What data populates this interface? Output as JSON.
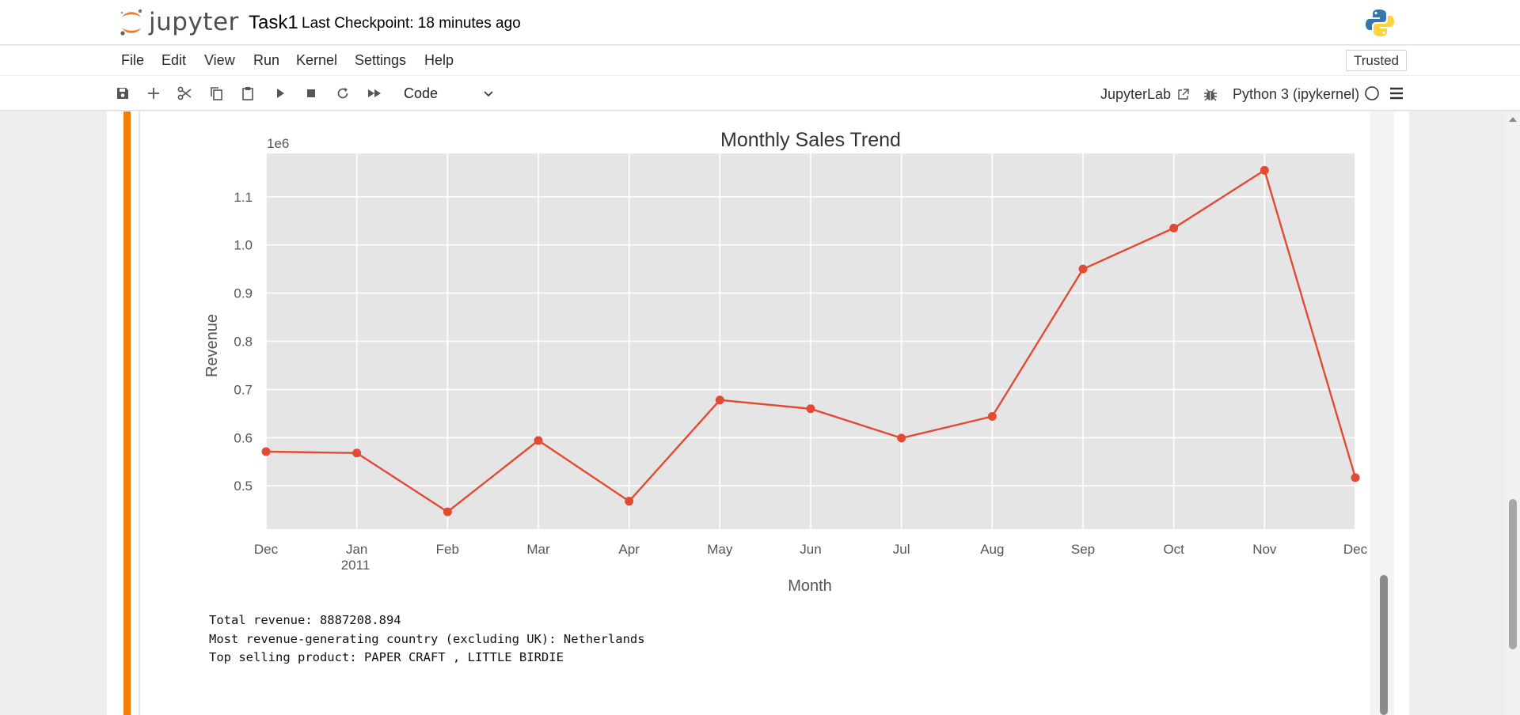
{
  "header": {
    "logo_text": "jupyter",
    "notebook_title": "Task1",
    "checkpoint": "Last Checkpoint: 18 minutes ago"
  },
  "menu": {
    "items": [
      "File",
      "Edit",
      "View",
      "Run",
      "Kernel",
      "Settings",
      "Help"
    ],
    "trusted": "Trusted"
  },
  "toolbar": {
    "cell_type": "Code",
    "jupyterlab_link": "JupyterLab",
    "kernel": "Python 3 (ipykernel)",
    "icons": [
      "save-icon",
      "add-cell-icon",
      "cut-icon",
      "copy-icon",
      "paste-icon",
      "run-icon",
      "stop-icon",
      "restart-icon",
      "fast-forward-icon"
    ]
  },
  "chart_data": {
    "type": "line",
    "title": "Monthly Sales Trend",
    "xlabel": "Month",
    "ylabel": "Revenue",
    "y_offset_text": "1e6",
    "x": [
      "2010-12",
      "2011-01",
      "2011-02",
      "2011-03",
      "2011-04",
      "2011-05",
      "2011-06",
      "2011-07",
      "2011-08",
      "2011-09",
      "2011-10",
      "2011-11",
      "2011-12"
    ],
    "x_tick_labels": [
      "Dec",
      "Jan",
      "Feb",
      "Mar",
      "Apr",
      "May",
      "Jun",
      "Jul",
      "Aug",
      "Sep",
      "Oct",
      "Nov",
      "Dec"
    ],
    "x_secondary_label": "2011",
    "values": [
      0.571,
      0.568,
      0.446,
      0.594,
      0.468,
      0.678,
      0.66,
      0.599,
      0.644,
      0.95,
      1.035,
      1.155,
      0.517
    ],
    "y_ticks": [
      "0.5",
      "0.6",
      "0.7",
      "0.8",
      "0.9",
      "1.0",
      "1.1"
    ],
    "ylim": [
      0.41,
      1.19
    ],
    "grid": true,
    "line_color": "#e24a33",
    "plot_background": "#e5e5e5"
  },
  "output_text": [
    "Total revenue: 8887208.894",
    "Most revenue-generating country (excluding UK): Netherlands",
    "Top selling product: PAPER CRAFT , LITTLE BIRDIE"
  ],
  "colors": {
    "accent": "#f57c00",
    "series": "#e24a33"
  }
}
